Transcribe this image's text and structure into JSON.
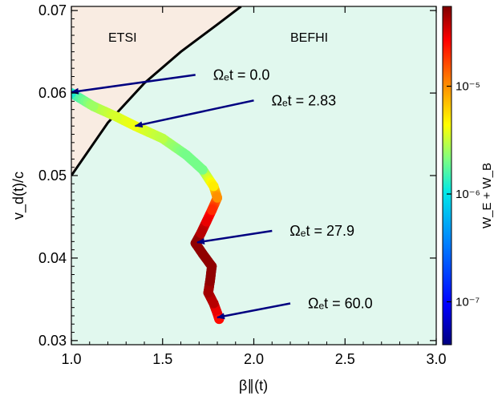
{
  "chart_data": {
    "type": "scatter",
    "title": "",
    "xlabel": "β∥(t)",
    "ylabel": "v_d(t)/c",
    "xlim": [
      1.0,
      3.0
    ],
    "ylim": [
      0.0295,
      0.0705
    ],
    "xticks": [
      "1.0",
      "1.5",
      "2.0",
      "2.5",
      "3.0"
    ],
    "yticks": [
      "0.03",
      "0.04",
      "0.05",
      "0.06",
      "0.07"
    ],
    "regions": [
      {
        "name": "ETSI",
        "color": "#f9ece2"
      },
      {
        "name": "BEFHI",
        "color": "#e1f8ee"
      }
    ],
    "boundary": {
      "color": "#000000",
      "points": [
        [
          1.0,
          0.05
        ],
        [
          1.2,
          0.0564
        ],
        [
          1.4,
          0.0612
        ],
        [
          1.6,
          0.065
        ],
        [
          1.8,
          0.0683
        ],
        [
          1.93,
          0.0705
        ]
      ]
    },
    "trajectory": {
      "color_quantity": "W_E + W_B",
      "points": [
        {
          "x": 1.0,
          "y": 0.06,
          "w": 1.2e-06
        },
        {
          "x": 1.12,
          "y": 0.0584,
          "w": 2.5e-06
        },
        {
          "x": 1.25,
          "y": 0.0571,
          "w": 3.5e-06
        },
        {
          "x": 1.35,
          "y": 0.056,
          "w": 4e-06
        },
        {
          "x": 1.5,
          "y": 0.0545,
          "w": 3e-06
        },
        {
          "x": 1.63,
          "y": 0.0525,
          "w": 2e-06
        },
        {
          "x": 1.72,
          "y": 0.0507,
          "w": 2e-06
        },
        {
          "x": 1.78,
          "y": 0.0487,
          "w": 5e-06
        },
        {
          "x": 1.8,
          "y": 0.0473,
          "w": 1e-05
        },
        {
          "x": 1.77,
          "y": 0.0458,
          "w": 2e-05
        },
        {
          "x": 1.74,
          "y": 0.0444,
          "w": 3e-05
        },
        {
          "x": 1.71,
          "y": 0.043,
          "w": 4e-05
        },
        {
          "x": 1.68,
          "y": 0.0418,
          "w": 5e-05
        },
        {
          "x": 1.72,
          "y": 0.0405,
          "w": 5e-05
        },
        {
          "x": 1.77,
          "y": 0.039,
          "w": 5e-05
        },
        {
          "x": 1.76,
          "y": 0.0372,
          "w": 5e-05
        },
        {
          "x": 1.75,
          "y": 0.0358,
          "w": 4.5e-05
        },
        {
          "x": 1.78,
          "y": 0.0345,
          "w": 4e-05
        },
        {
          "x": 1.8,
          "y": 0.0333,
          "w": 3e-05
        },
        {
          "x": 1.81,
          "y": 0.0326,
          "w": 2.5e-05
        }
      ]
    },
    "annotations": [
      {
        "label": "Ωₑt = 0.0",
        "from": [
          1.68,
          0.0622
        ],
        "to": [
          1.0,
          0.0601
        ]
      },
      {
        "label": "Ωₑt = 2.83",
        "from": [
          2.0,
          0.0591
        ],
        "to": [
          1.35,
          0.056
        ]
      },
      {
        "label": "Ωₑt = 27.9",
        "from": [
          2.1,
          0.0433
        ],
        "to": [
          1.69,
          0.0419
        ]
      },
      {
        "label": "Ωₑt = 60.0",
        "from": [
          2.2,
          0.0345
        ],
        "to": [
          1.8,
          0.0328
        ]
      }
    ],
    "colorbar": {
      "label": "W_E + W_B",
      "scale": "log",
      "range": [
        4e-08,
        5.5e-05
      ],
      "ticks": [
        {
          "value": 1e-07,
          "label": "10⁻⁷"
        },
        {
          "value": 1e-06,
          "label": "10⁻⁶"
        },
        {
          "value": 1e-05,
          "label": "10⁻⁵"
        }
      ]
    },
    "arrow_color": "#000080",
    "grid": false
  }
}
